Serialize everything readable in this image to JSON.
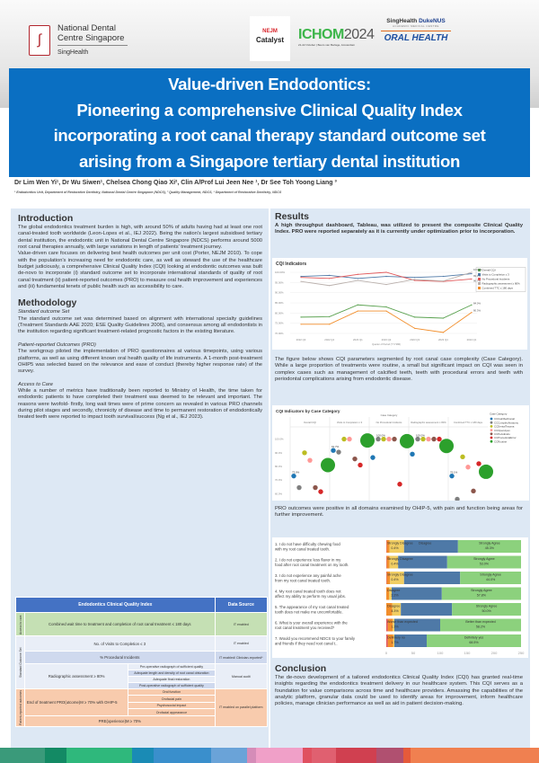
{
  "header": {
    "ndcs_logo": {
      "line1": "National Dental",
      "line2": "Centre Singapore",
      "line3": "SingHealth"
    },
    "nejm_logo": {
      "line1": "NEJM",
      "line2": "Catalyst"
    },
    "ichom_logo": {
      "name": "ICHOM",
      "year": "2024",
      "sub": "21-22 October | Beurs van Berlage, Amsterdam"
    },
    "singhealth_logo": {
      "a": "SingHealth",
      "b": "DukeNUS",
      "c": "ACADEMIC MEDICAL CENTRE",
      "d": "ORAL HEALTH"
    }
  },
  "title": [
    "Value-driven Endodontics:",
    "Pioneering a comprehensive Clinical Quality Index",
    "incorporating a root canal therapy standard outcome set",
    "arising from a Singapore tertiary dental institution"
  ],
  "authors": "Dr Lim Wen Yi¹, Dr Wu Siwen¹, Chelsea Chong Qiao Xi², Clin A/Prof Lui Jeen Nee ¹, Dr See Toh Yoong Liang ³",
  "affiliations": "¹ Endodontics Unit, Department of Restorative Dentistry, National Dental Centre Singapore (NDCS), ² Quality Management, NDCS, ³ Department of Restorative Dentistry, NDCS",
  "introduction": {
    "heading": "Introduction",
    "p1": "The global endodontics treatment burden is high, with around 50% of adults having had at least one root canal-treated tooth worldwide (Leon-Lopes et al., IEJ 2022). Being the nation's largest subsidised tertiary dental institution, the endodontic unit in National Dental Centre Singapore (NDCS) performs around 5000 root canal therapies annually, with large variations in length of patients' treatment journey.",
    "p2": "Value-driven care focuses on delivering best health outcomes per unit cost (Porter, NEJM 2010). To cope with the population's increasing need for endodontic care, as well as steward the use of the healthcare budget judiciously, a comprehensive Clinical Quality Index (CQI) looking at endodontic outcomes was built de-novo to incorporate (i) standard outcome set to incorporate international standards of quality of root canal treatment (ii) patient-reported outcomes (PRO) to measure oral health improvement and experiences and (iii) fundamental tenets of public health such as accessibility to care."
  },
  "methodology": {
    "heading": "Methodology",
    "s1_title": "Standard outcome Set",
    "s1": "The standard outcome set was determined based on alignment with international specialty guidelines (Treatment Standards AAE 2020; ESE Quality Guidelines 2006), and consensus among all endodontists in the institution regarding significant treatment-related prognostic factors in the existing literature.",
    "s2_title": "Patient-reported Outcomes (PRO)",
    "s2": "The workgroup piloted the implementation of PRO questionnaires at various timepoints, using various platforms, as well as using different known oral health quality of life instruments. A 1-month post-treatment OHIP5 was selected based on the relevance and ease of conduct (thereby higher response rate) of the survey.",
    "s3_title": "Access to Care",
    "s3": "While a number of metrics have traditionally been reported to Ministry of Health, the time taken for endodontic patients to have completed their treatment was deemed to be relevant and important. The reasons were twofold- firstly, long wait times were of prime concern as revealed in various PRO channels during pilot stages and secondly, chronicity of disease and time to permanent restoration of endodontically treated teeth were reported to impact tooth survival/success (Ng et al., IEJ 2023)."
  },
  "table": {
    "h1": "Endodontics Clinical Quality Index",
    "h2": "Data Source",
    "access_label": "Access to care",
    "access_item": "Combined wait time to treatment and completion of root canal treatment ≤ 180 days",
    "access_src": "IT enabled",
    "sos_label": "Standard Outcome Set",
    "visits": "No. of Visits to Completion ≤ 3",
    "visits_src": "IT enabled",
    "incidents": "% Procedural Incidents",
    "incidents_src": "IT enabled/ Clinician-reported*",
    "radio": "Radiographic assessment ≥ 80%",
    "radio_items": [
      "Pre-operative radiograph of sufficient quality",
      "Adequate length and density of root canal obturation",
      "Adequate final restoration",
      "Post-operative radiograph of sufficient quality"
    ],
    "radio_src": "Manual audit",
    "pro_label": "Patient-reported outcomes",
    "prom": "End of treatment PRO(utcome)M ≥ 70% with OHIP-5",
    "prom_items": [
      "Oral function",
      "Orofacial pain",
      "Psychosocial impact",
      "Orofacial appearance"
    ],
    "prem": "PRE(xperience)M ≥ 70%",
    "pro_src": "IT enabled on parallel platform"
  },
  "results": {
    "heading": "Results",
    "p1": "A high throughput dashboard, Tableau, was utilized to present the composite Clinical Quality Index. PRO were reported separately as it is currently under optimization prior to incorporation.",
    "p2": "The figure below shows CQI parameters segmented by root canal case complexity (Case Category). While a large proportion of treatments were routine, a small but significant impact on CQI was seen in complex cases such as management of calcified teeth, teeth with procedural errors and teeth with periodontal complications arising from endodontic disease.",
    "p3": "PRO outcomes were positive in all domains examined by OHIP-5, with pain and function being areas for further improvement."
  },
  "conclusion": {
    "heading": "Conclusion",
    "p": "The de-novo development of a tailored endodontics Clinical Quality Index (CQI) has granted real-time insights regarding the endodontics treatment delivery in our healthcare system. This CQI serves as a foundation for value comparisons across time and healthcare providers. Amassing the capabilities of the analytic platform, granular data could be used to identify areas for improvement, inform healthcare policies, manage clinician performance as well as aid in patient decision-making."
  },
  "colors": {
    "title_bg": "#0a6fc2",
    "panel_bg": "#dde8f4",
    "table_header": "#4472c4",
    "access": "#c5e0b4",
    "pro": "#f8cbad"
  },
  "chart_data": [
    {
      "type": "line",
      "title": "CQI Indicators",
      "xlabel": "Quarter of Period (YYYMM)",
      "ylim": [
        70,
        100
      ],
      "yticks": [
        "70.00%",
        "75.00%",
        "80.00%",
        "85.00%",
        "90.00%",
        "95.00%",
        "100.00%"
      ],
      "categories": [
        "2022 Q3",
        "2022 Q4",
        "2023 Q1",
        "2023 Q2",
        "2023 Q3",
        "2023 Q4",
        "2024 Q1"
      ],
      "legend": "right",
      "series": [
        {
          "name": "Overall CQI",
          "color": "#59a14f",
          "values": [
            78,
            78.2,
            84,
            83,
            78,
            77.5,
            84.0
          ],
          "end_label": "84.0%"
        },
        {
          "name": "Visits to Completion ≤ 3",
          "color": "#4e79a7",
          "values": [
            98,
            98.5,
            97,
            98,
            97.5,
            98,
            99.3
          ],
          "end_label": "99.3%"
        },
        {
          "name": "No Procedural Incidents",
          "color": "#e15759",
          "values": [
            97.5,
            97,
            99,
            100,
            96,
            95.5,
            96.7
          ],
          "end_label": "96.7%"
        },
        {
          "name": "Radiographic assessment ≥ 80%",
          "color": "#bab0ac",
          "values": [
            95.5,
            93.5,
            96,
            94,
            96.5,
            95.7,
            100.0
          ],
          "end_label": "100.0%"
        },
        {
          "name": "Combined TTC ≤ 180 days",
          "color": "#f28e2b",
          "values": [
            74.5,
            74.5,
            81,
            81,
            72.5,
            70.5,
            80.3
          ],
          "end_label": "80.3%"
        }
      ]
    },
    {
      "type": "scatter",
      "title": "CQI Indicators by Case Category",
      "column_header": "Case Category",
      "ylim": [
        55,
        105
      ],
      "yticks": [
        "60.0%",
        "70.0%",
        "80.0%",
        "90.0%",
        "100.0%"
      ],
      "legend": "right",
      "legend_title": "Case Category",
      "panels": [
        "Overall CQI",
        "Visits to Completion ≤ 3",
        "No Procedural Incidents",
        "Radiographic assessment ≥ 80%",
        "Combined TTC ≤ 180 days"
      ],
      "series": [
        {
          "name": "CCCalcifiedCanal",
          "color": "#1f77b4",
          "values": [
            73.0,
            91.7,
            86.5,
            89,
            73
          ],
          "size": "small"
        },
        {
          "name": "CCComplexAnatomy",
          "color": "#7f7f7f",
          "values": [
            64.5,
            90.5,
            100.0,
            100,
            56
          ],
          "size": "small"
        },
        {
          "name": "CCDentalTrauma",
          "color": "#bcbd22",
          "values": [
            90,
            100,
            100,
            100,
            87
          ],
          "size": "small"
        },
        {
          "name": "CCOpenApex",
          "color": "#ff9896",
          "values": [
            84.5,
            100,
            100,
            100,
            79.5
          ],
          "size": "small"
        },
        {
          "name": "CCPerioEndo",
          "color": "#8c564b",
          "values": [
            64.5,
            85.5,
            100,
            100,
            62
          ],
          "size": "small"
        },
        {
          "name": "CCProceduralError",
          "color": "#d62728",
          "values": [
            61.5,
            81,
            67,
            100,
            82
          ],
          "size": "small"
        },
        {
          "name": "CCRoutine",
          "color": "#2ca02c",
          "values": [
            81,
            99,
            98.5,
            95,
            76.1
          ],
          "size": "large"
        }
      ],
      "point_labels": [
        "73.0%",
        "91.7%",
        "100.0%",
        "100.0%",
        "76.1%"
      ]
    },
    {
      "type": "bar",
      "stacked": true,
      "orientation": "horizontal",
      "xlim": [
        0,
        250
      ],
      "xticks": [
        "0",
        "50",
        "100",
        "150",
        "200",
        "250"
      ],
      "segment_colors": [
        "#e15759",
        "#f28e2b",
        "#f1ce63",
        "#4e79a7",
        "#8cd17d"
      ],
      "rows": [
        {
          "label": "1. I do not have difficulty chewing food with my root canal treated tooth.",
          "values": [
            1,
            5,
            27,
            100,
            117
          ],
          "left": "Strongly Disagree",
          "left_pct": "0.4%",
          "mid": "Disagree",
          "right": "Strongly Agree",
          "right_pct": "45.3%"
        },
        {
          "label": "2. I do not experience less flavor in my food after root canal treatment on my tooth.",
          "values": [
            1,
            5,
            16,
            91,
            137
          ],
          "left": "Strongly Disagree",
          "left_pct": "0.4%",
          "mid": "",
          "right": "Strongly Agree",
          "right_pct": "53.0%"
        },
        {
          "label": "3. I do not experience any painful ache from my root canal treated tooth.",
          "values": [
            1,
            6,
            26,
            104,
            113
          ],
          "left": "Strongly Disagree",
          "left_pct": "0.4%",
          "mid": "",
          "right": "Strongly Agree",
          "right_pct": "44.0%"
        },
        {
          "label": "4. My root canal treated tooth does not affect my ability to perform my usual jobs.",
          "values": [
            0,
            5,
            5,
            93,
            147
          ],
          "left": "Disagree",
          "left_pct": "2.2%",
          "mid": "",
          "right": "Strongly Agree",
          "right_pct": "57.8%"
        },
        {
          "label": "5. The appearance of my root canal treated tooth does not make me uncomfortable.",
          "values": [
            0,
            11,
            16,
            95,
            128
          ],
          "left": "Disagree",
          "left_pct": "4.3%",
          "mid": "",
          "right": "Strongly Agree",
          "right_pct": "50.0%"
        },
        {
          "label": "6. What is your overall experience with the root canal treatment you received?",
          "values": [
            3,
            9,
            3,
            85,
            150
          ],
          "left": "Worse than expected",
          "left_pct": "1.3%",
          "mid": "",
          "right": "Better than expected",
          "right_pct": "58.2%"
        },
        {
          "label": "7. Would you recommend NDCS to your family and friends if they need root canal t..",
          "values": [
            3,
            10,
            2,
            60,
            175
          ],
          "left": "Definitely no",
          "left_pct": "1.7%",
          "mid": "",
          "right": "Definitely yes",
          "right_pct": "68.5%"
        }
      ]
    }
  ]
}
